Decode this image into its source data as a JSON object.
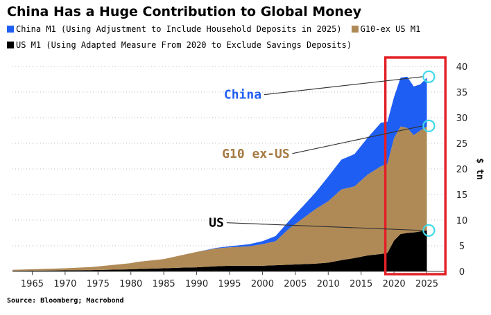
{
  "chart_data": {
    "type": "area",
    "title": "China Has a Huge Contribution to Global Money",
    "ylabel": "$ tn",
    "xlim": [
      1962,
      2028
    ],
    "ylim": [
      0,
      40
    ],
    "xticks": [
      1965,
      1970,
      1975,
      1980,
      1985,
      1990,
      1995,
      2000,
      2005,
      2010,
      2015,
      2020,
      2025
    ],
    "yticks": [
      0,
      5,
      10,
      15,
      20,
      25,
      30,
      35,
      40
    ],
    "stacked": true,
    "grid": "horizontal dotted",
    "legend_position": "top",
    "x": [
      1962,
      1966,
      1970,
      1974,
      1978,
      1980,
      1981,
      1985,
      1988,
      1990,
      1993,
      1995,
      1998,
      2000,
      2002,
      2004,
      2006,
      2008,
      2010,
      2012,
      2014,
      2016,
      2018,
      2019,
      2020,
      2021,
      2022,
      2023,
      2024,
      2025
    ],
    "series": [
      {
        "name": "US M1 (Using Adapted Measure From 2020 to Exclude Savings Deposits)",
        "color": "#000000",
        "values": [
          0.1,
          0.15,
          0.2,
          0.25,
          0.35,
          0.4,
          0.45,
          0.6,
          0.75,
          0.8,
          1.0,
          1.1,
          1.1,
          1.1,
          1.2,
          1.3,
          1.4,
          1.5,
          1.7,
          2.2,
          2.6,
          3.1,
          3.4,
          3.6,
          6.0,
          7.3,
          7.5,
          7.6,
          7.8,
          8.0
        ]
      },
      {
        "name": "G10-ex US M1",
        "color": "#b08a56",
        "values": [
          0.2,
          0.3,
          0.4,
          0.6,
          1.0,
          1.2,
          1.4,
          1.8,
          2.5,
          3.0,
          3.5,
          3.6,
          3.8,
          4.2,
          4.7,
          7.0,
          8.8,
          10.6,
          12.0,
          13.8,
          14.0,
          15.8,
          17.1,
          17.4,
          20.0,
          21.0,
          20.5,
          19.0,
          19.7,
          20.3
        ]
      },
      {
        "name": "China M1 (Using Adjustment to Include Household Deposits in 2025)",
        "color": "#1f5ef2",
        "values": [
          0.0,
          0.0,
          0.0,
          0.0,
          0.0,
          0.0,
          0.0,
          0.0,
          0.0,
          0.0,
          0.1,
          0.2,
          0.4,
          0.6,
          1.0,
          1.5,
          2.3,
          3.2,
          4.8,
          5.8,
          6.3,
          7.2,
          8.5,
          8.2,
          8.0,
          9.5,
          10.0,
          9.5,
          9.0,
          9.5
        ]
      }
    ],
    "annotations": [
      {
        "text": "China",
        "color": "#1f5ef2",
        "x": 1997,
        "y": 34.5,
        "target_x": 2025.3,
        "target_y": 38
      },
      {
        "text": "G10 ex-US",
        "color": "#a67a42",
        "x": 1999,
        "y": 23,
        "target_x": 2025.3,
        "target_y": 28.4
      },
      {
        "text": "US",
        "color": "#000000",
        "x": 1993,
        "y": 9.5,
        "target_x": 2025.3,
        "target_y": 8.0
      }
    ],
    "highlight_box": {
      "x_from": 2019,
      "x_to": 2027.5,
      "color": "#e32027"
    }
  },
  "source": "Source: Bloomberg; Macrobond"
}
